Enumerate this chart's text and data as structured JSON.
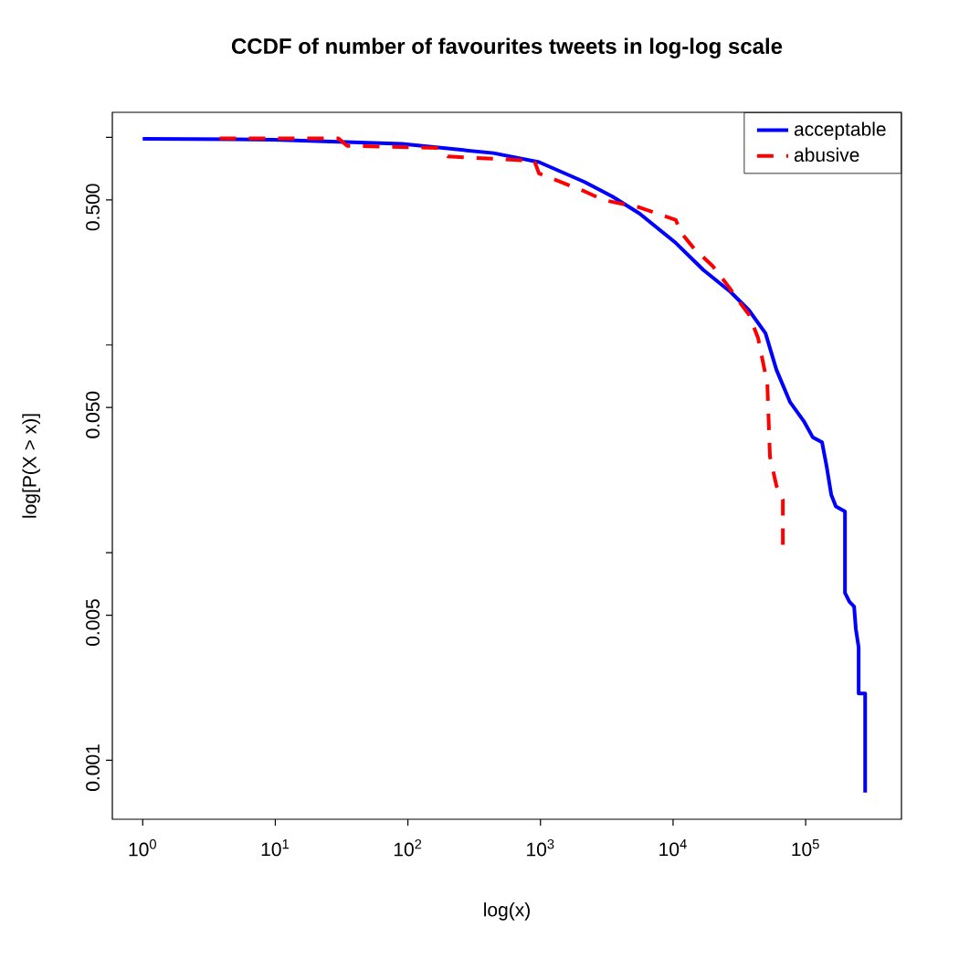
{
  "chart_data": {
    "type": "line",
    "title": "CCDF of number of favourites tweets in log-log scale",
    "xlabel": "log(x)",
    "ylabel": "log[P(X > x)]",
    "log": "xy",
    "legend": "top right",
    "marker": "none",
    "grid": false,
    "xlim": [
      0.59,
      528000
    ],
    "ylim": [
      0.00052,
      1.32
    ],
    "xticks": [
      {
        "value": 1,
        "label": "10$^{0}$"
      },
      {
        "value": 10,
        "label": "10$^{1}$"
      },
      {
        "value": 100,
        "label": "10$^{2}$"
      },
      {
        "value": 1000,
        "label": "10$^{3}$"
      },
      {
        "value": 10000,
        "label": "10$^{4}$"
      },
      {
        "value": 100000,
        "label": "10$^{5}$"
      }
    ],
    "yticks": [
      {
        "value": 1,
        "label": null
      },
      {
        "value": 0.5,
        "label": "0.500"
      },
      {
        "value": 0.1,
        "label": null
      },
      {
        "value": 0.05,
        "label": "0.050"
      },
      {
        "value": 0.01,
        "label": null
      },
      {
        "value": 0.005,
        "label": "0.005"
      },
      {
        "value": 0.001,
        "label": "0.001"
      }
    ],
    "series": [
      {
        "name": "acceptable",
        "color": "#0000ff",
        "line_style": "solid",
        "x": [
          1,
          9.8,
          90,
          442,
          975,
          2150,
          3470,
          5580,
          10500,
          16900,
          27200,
          37400,
          49800,
          60200,
          76400,
          96800,
          113000,
          133000,
          144000,
          156000,
          169000,
          198000,
          198000,
          214000,
          232000,
          239000,
          251000,
          251000,
          281000,
          281000
        ],
        "values": [
          0.985,
          0.975,
          0.93,
          0.84,
          0.76,
          0.61,
          0.52,
          0.43,
          0.31,
          0.23,
          0.18,
          0.147,
          0.114,
          0.076,
          0.053,
          0.043,
          0.036,
          0.034,
          0.026,
          0.019,
          0.0167,
          0.0158,
          0.0064,
          0.0058,
          0.0055,
          0.0043,
          0.0035,
          0.0021,
          0.0021,
          0.0007
        ]
      },
      {
        "name": "abusive",
        "color": "#ff0000",
        "line_style": "dashed",
        "x": [
          3.8,
          29.8,
          34.9,
          170,
          200,
          900,
          975,
          2150,
          2960,
          5580,
          10500,
          11400,
          14500,
          19900,
          26400,
          31900,
          37400,
          43800,
          47400,
          51400,
          53800,
          60200,
          67300,
          67300
        ],
        "values": [
          0.99,
          0.99,
          0.91,
          0.89,
          0.81,
          0.77,
          0.67,
          0.55,
          0.5,
          0.46,
          0.4,
          0.35,
          0.29,
          0.24,
          0.19,
          0.16,
          0.14,
          0.108,
          0.084,
          0.065,
          0.029,
          0.021,
          0.018,
          0.0106
        ]
      }
    ]
  }
}
